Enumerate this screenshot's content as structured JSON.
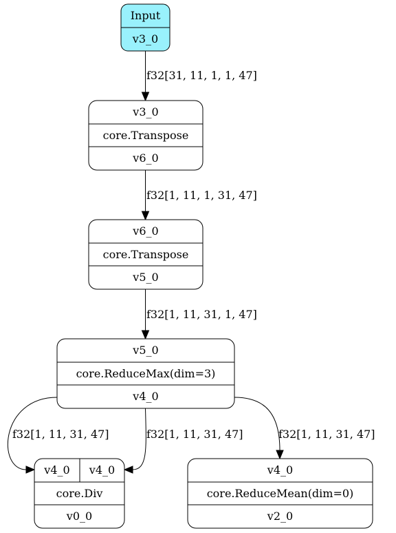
{
  "nodes": {
    "input": {
      "title": "Input",
      "output": "v3_0",
      "fill": "#99f1fc"
    },
    "transpose1": {
      "input": "v3_0",
      "op": "core.Transpose",
      "output": "v6_0"
    },
    "transpose2": {
      "input": "v6_0",
      "op": "core.Transpose",
      "output": "v5_0"
    },
    "reducemax": {
      "input": "v5_0",
      "op": "core.ReduceMax(dim=3)",
      "output": "v4_0"
    },
    "div": {
      "input_a": "v4_0",
      "input_b": "v4_0",
      "op": "core.Div",
      "output": "v0_0"
    },
    "reducemean": {
      "input": "v4_0",
      "op": "core.ReduceMean(dim=0)",
      "output": "v2_0"
    }
  },
  "edges": {
    "input_to_transpose1": "f32[31, 11, 1, 1, 47]",
    "transpose1_to_transpose2": "f32[1, 11, 1, 31, 47]",
    "transpose2_to_reducemax": "f32[1, 11, 31, 1, 47]",
    "reducemax_to_div_a": "f32[1, 11, 31, 47]",
    "reducemax_to_div_b": "f32[1, 11, 31, 47]",
    "reducemax_to_reducemean": "f32[1, 11, 31, 47]"
  }
}
